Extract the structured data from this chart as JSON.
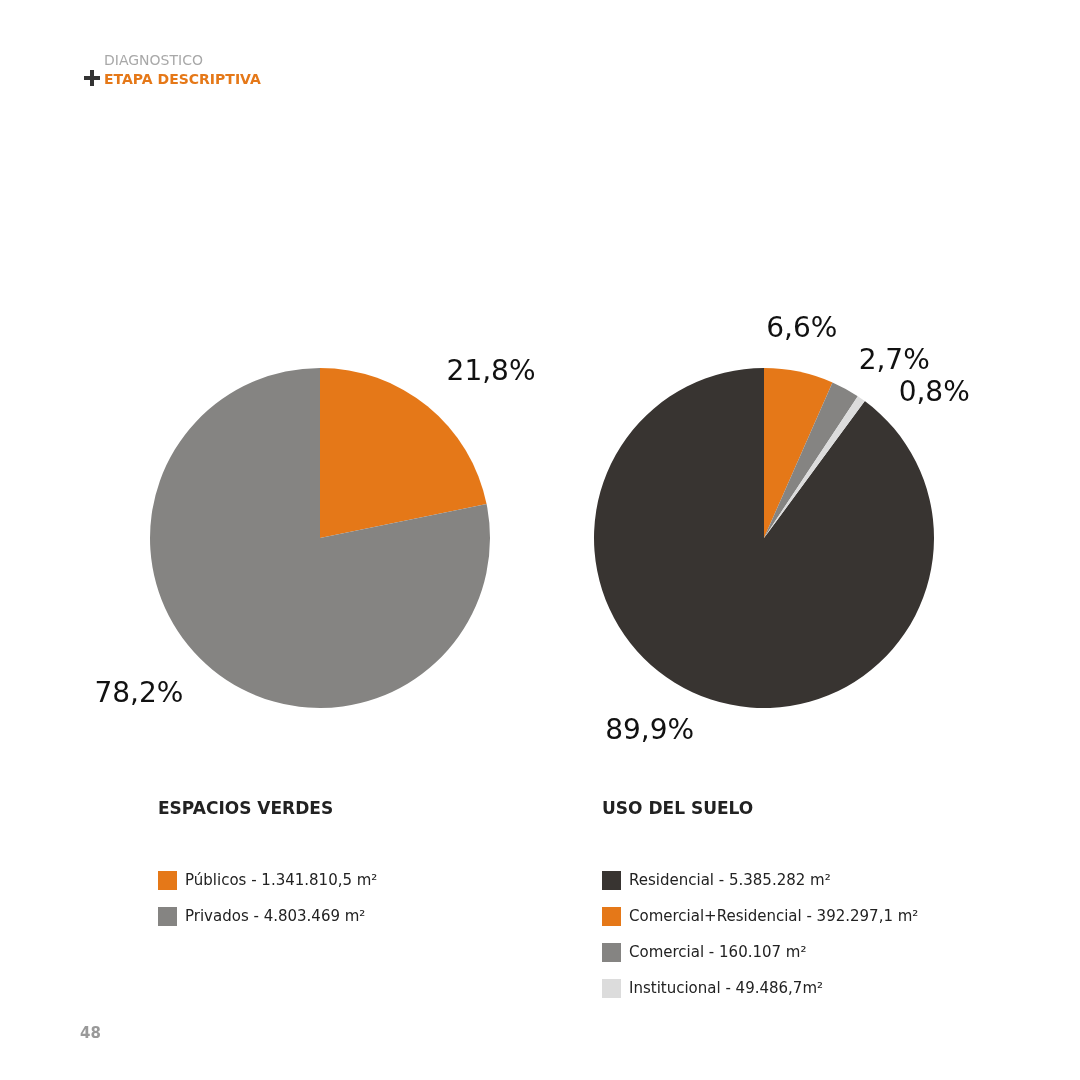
{
  "chart_data": [
    {
      "type": "pie",
      "title": "ESPACIOS VERDES",
      "categories": [
        "Públicos - 1.341.810,5 m²",
        "Privados - 4.803.469 m²"
      ],
      "values": [
        21.8,
        78.2
      ],
      "value_labels": [
        "21,8%",
        "78,2%"
      ],
      "colors": [
        "#e57818",
        "#858482"
      ],
      "data_labels": true,
      "legend": "bottom",
      "annotations": [
        "DIAGNOSTICO",
        "ETAPA DESCRIPTIVA",
        "48"
      ]
    },
    {
      "type": "pie",
      "title": "USO DEL SUELO",
      "categories": [
        "Residencial - 5.385.282 m²",
        "Comercial+Residencial - 392.297,1 m²",
        "Comercial - 160.107 m²",
        "Institucional - 49.486,7m²"
      ],
      "values": [
        89.9,
        6.6,
        2.7,
        0.8
      ],
      "value_labels": [
        "89,9%",
        "6,6%",
        "2,7%",
        "0,8%"
      ],
      "colors": [
        "#383431",
        "#e57818",
        "#858482",
        "#dcdcdc"
      ],
      "data_labels": true,
      "legend": "bottom"
    }
  ]
}
